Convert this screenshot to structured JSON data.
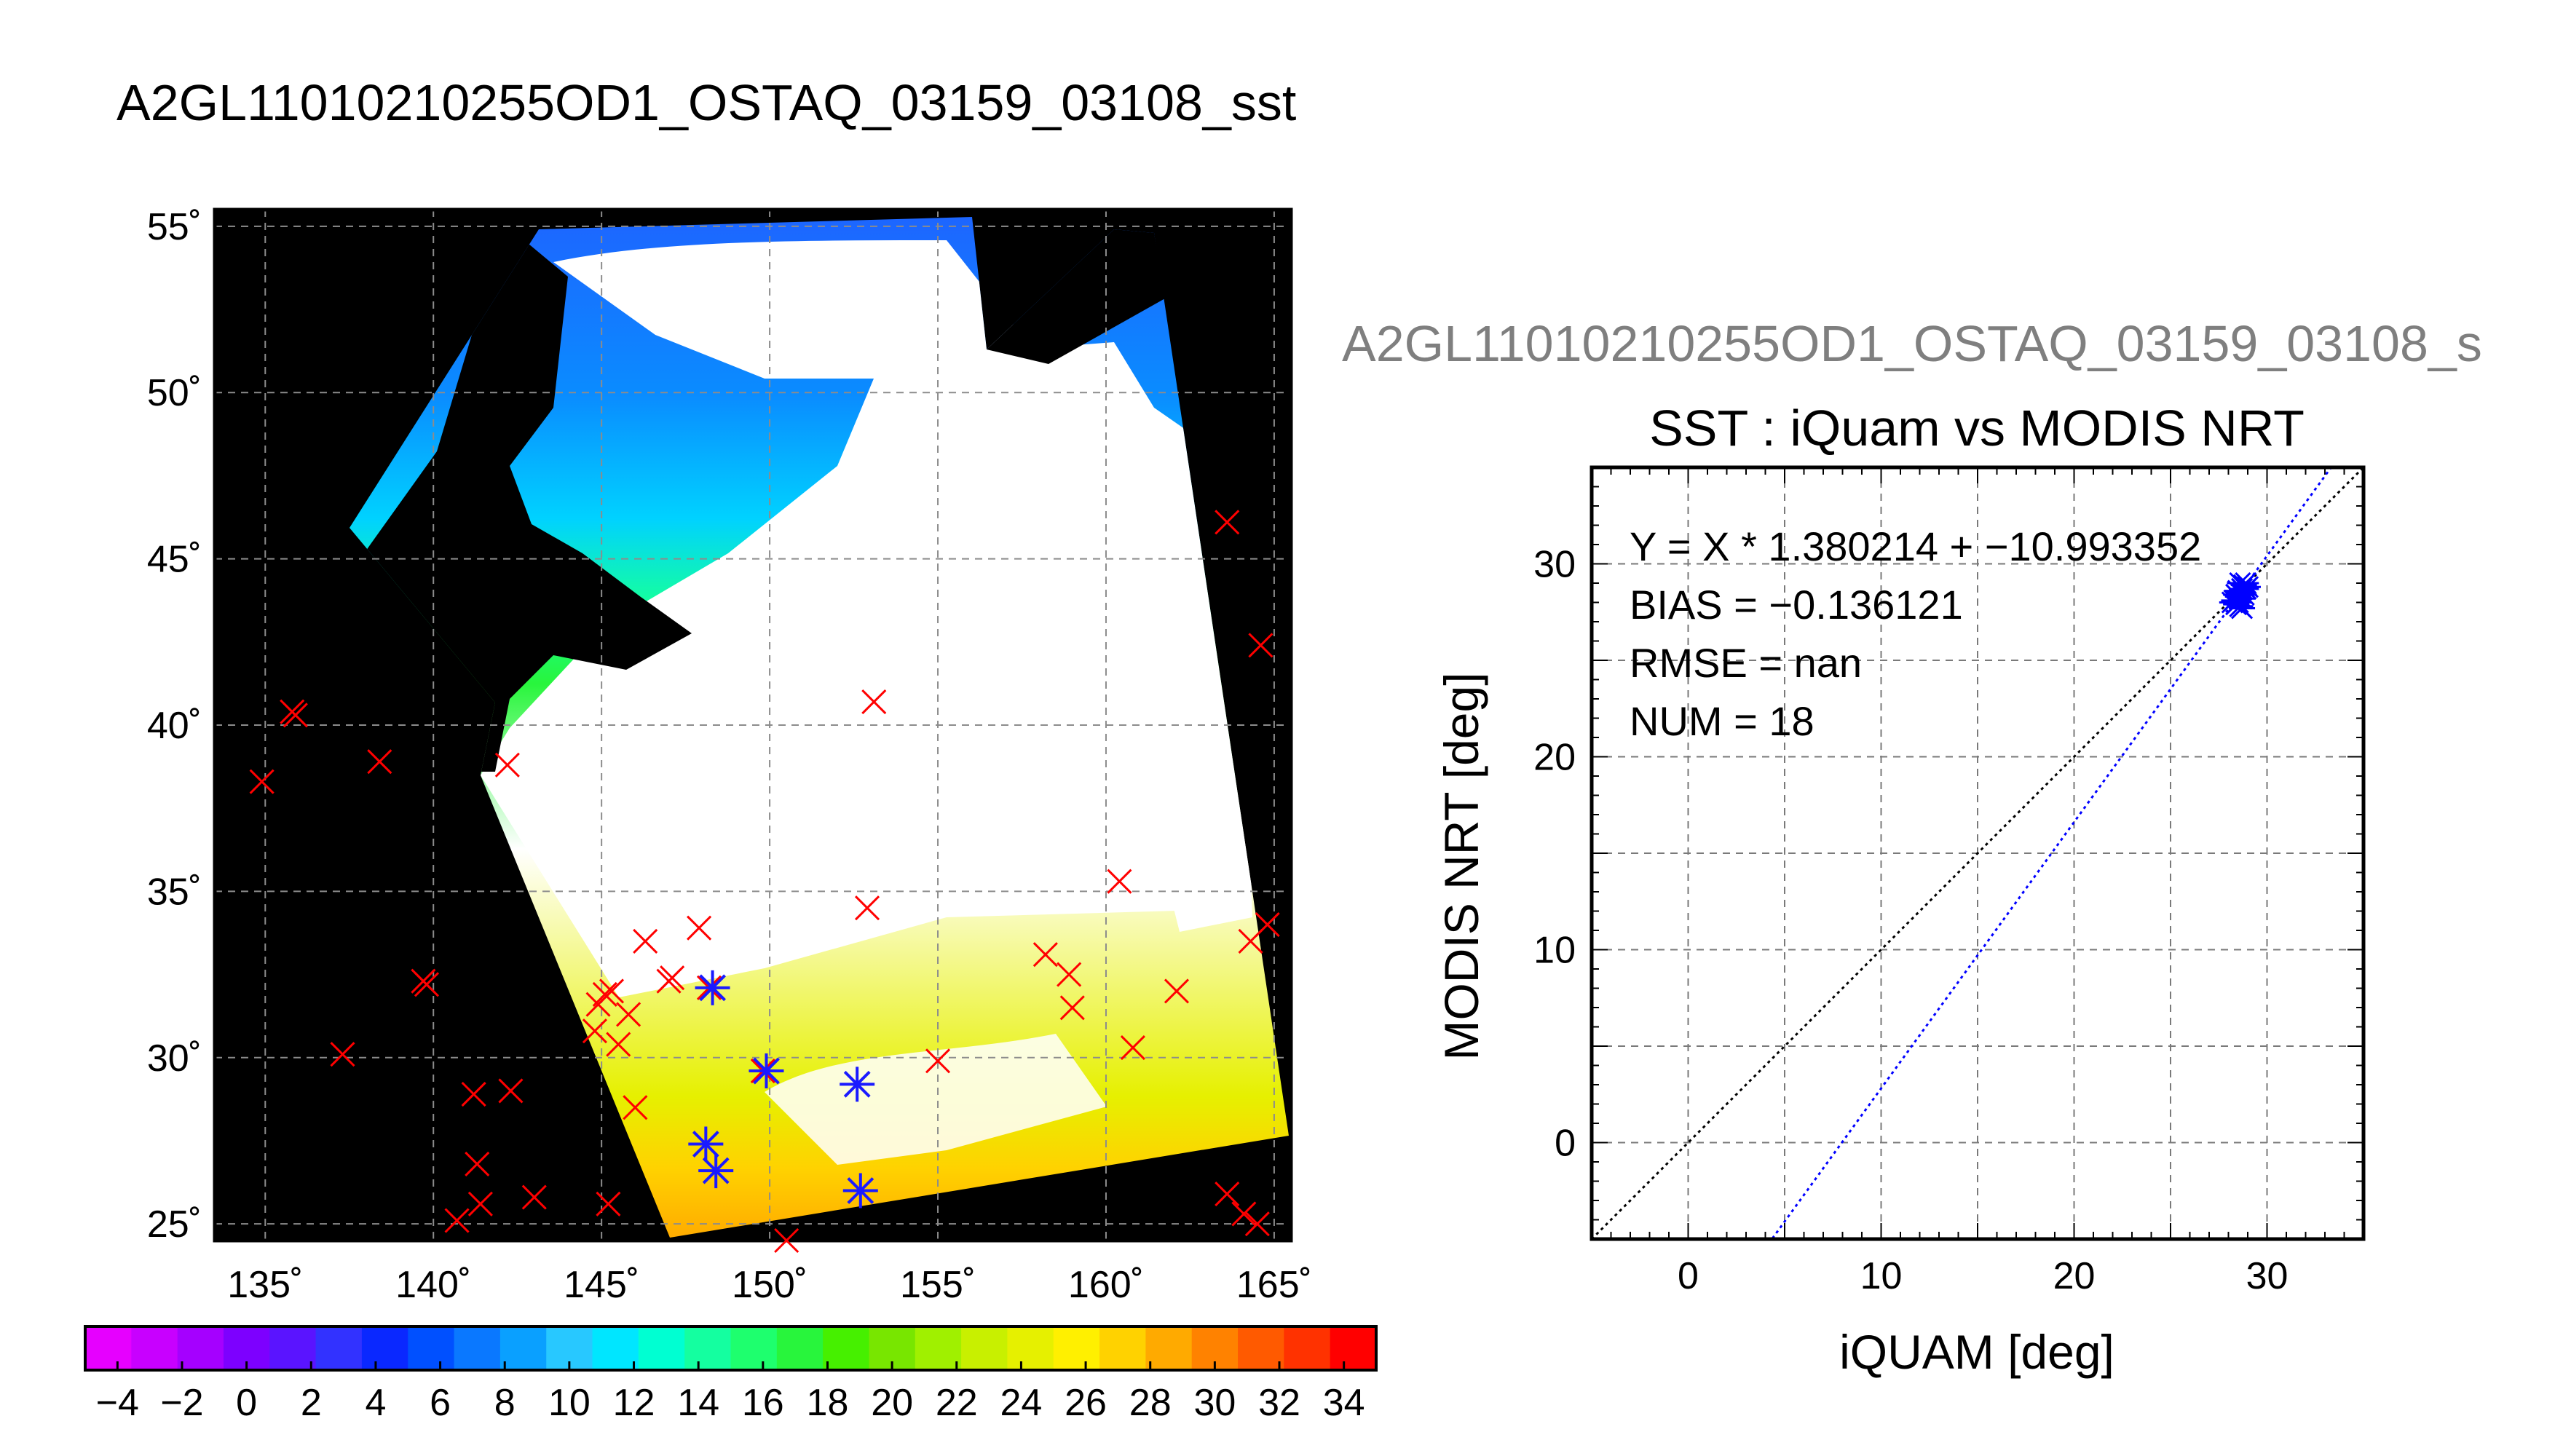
{
  "main_title": "A2GL11010210255OD1_OSTAQ_03159_03108_sst",
  "chart_data": [
    {
      "type": "map",
      "title": "A2GL11010210255OD1_OSTAQ_03159_03108_sst",
      "xlim": [
        133.5,
        165.5
      ],
      "ylim": [
        24.5,
        55.5
      ],
      "x_ticks": [
        135,
        140,
        145,
        150,
        155,
        160,
        165
      ],
      "y_ticks": [
        25,
        30,
        35,
        40,
        45,
        50,
        55
      ],
      "x_tick_labels": [
        "135˚",
        "140˚",
        "145˚",
        "150˚",
        "155˚",
        "160˚",
        "165˚"
      ],
      "y_tick_labels": [
        "25˚",
        "30˚",
        "35˚",
        "40˚",
        "45˚",
        "50˚",
        "55˚"
      ],
      "grid": true,
      "colorbar": {
        "min": -5,
        "max": 35,
        "tick_values": [
          -4,
          -2,
          0,
          2,
          4,
          6,
          8,
          10,
          12,
          14,
          16,
          18,
          20,
          22,
          24,
          26,
          28,
          30,
          32,
          34
        ],
        "tick_labels": [
          "−4",
          "−2",
          "0",
          "2",
          "4",
          "6",
          "8",
          "10",
          "12",
          "14",
          "16",
          "18",
          "20",
          "22",
          "24",
          "26",
          "28",
          "30",
          "32",
          "34"
        ],
        "colors": [
          "#e600ff",
          "#c800ff",
          "#a500ff",
          "#7d00ff",
          "#5a14ff",
          "#3232ff",
          "#0a28ff",
          "#0050ff",
          "#0a78ff",
          "#0aa0ff",
          "#28c8ff",
          "#00e6ff",
          "#00ffd2",
          "#14ffa0",
          "#1eff6e",
          "#28f53c",
          "#46f000",
          "#78e600",
          "#a0f000",
          "#c8f000",
          "#e6f000",
          "#fff000",
          "#ffd200",
          "#ffaa00",
          "#ff8200",
          "#ff5a00",
          "#ff3200",
          "#ff0000"
        ]
      },
      "in_situ_points": [
        [
          134.9,
          38.3
        ],
        [
          135.8,
          40.4
        ],
        [
          135.9,
          40.3
        ],
        [
          137.3,
          30.1
        ],
        [
          138.4,
          38.9
        ],
        [
          139.7,
          32.3
        ],
        [
          139.8,
          32.2
        ],
        [
          140.7,
          25.1
        ],
        [
          141.2,
          28.9
        ],
        [
          141.3,
          26.8
        ],
        [
          141.4,
          25.6
        ],
        [
          142.2,
          38.8
        ],
        [
          142.3,
          29.0
        ],
        [
          143.0,
          25.8
        ],
        [
          144.8,
          30.8
        ],
        [
          144.9,
          31.6
        ],
        [
          145.1,
          31.9
        ],
        [
          145.3,
          32.0
        ],
        [
          145.2,
          25.6
        ],
        [
          145.5,
          30.4
        ],
        [
          145.8,
          31.3
        ],
        [
          146.0,
          28.5
        ],
        [
          146.3,
          33.5
        ],
        [
          147.0,
          32.3
        ],
        [
          147.1,
          32.4
        ],
        [
          147.9,
          33.9
        ],
        [
          148.1,
          27.4
        ],
        [
          148.2,
          32.1
        ],
        [
          148.4,
          26.6
        ],
        [
          149.8,
          29.6
        ],
        [
          150.5,
          24.5
        ],
        [
          152.6,
          29.2
        ],
        [
          152.9,
          34.5
        ],
        [
          152.7,
          26.0
        ],
        [
          153.1,
          40.7
        ],
        [
          155.0,
          29.9
        ],
        [
          158.2,
          33.1
        ],
        [
          158.9,
          32.5
        ],
        [
          159.0,
          31.5
        ],
        [
          160.4,
          35.3
        ],
        [
          160.8,
          30.3
        ],
        [
          162.1,
          32.0
        ],
        [
          163.6,
          46.1
        ],
        [
          163.6,
          25.9
        ],
        [
          164.1,
          25.3
        ],
        [
          164.3,
          33.5
        ],
        [
          164.5,
          25.0
        ],
        [
          164.8,
          34.0
        ],
        [
          164.6,
          42.4
        ]
      ],
      "matchup_points": [
        [
          148.3,
          32.1
        ],
        [
          148.1,
          27.4
        ],
        [
          148.4,
          26.6
        ],
        [
          149.9,
          29.6
        ],
        [
          152.6,
          29.2
        ],
        [
          152.7,
          26.0
        ]
      ]
    },
    {
      "type": "scatter",
      "super_title": "A2GL11010210255OD1_OSTAQ_03159_03108_s",
      "title": "SST : iQuam vs MODIS NRT",
      "xlabel": "iQUAM [deg]",
      "ylabel": "MODIS NRT [deg]",
      "xlim": [
        -5,
        35
      ],
      "ylim": [
        -5,
        35
      ],
      "x_ticks": [
        0,
        10,
        20,
        30
      ],
      "y_ticks": [
        0,
        10,
        20,
        30
      ],
      "x_tick_labels": [
        "0",
        "10",
        "20",
        "30"
      ],
      "y_tick_labels": [
        "0",
        "10",
        "20",
        "30"
      ],
      "grid": true,
      "stats": {
        "line1": "Y = X * 1.380214 + −10.993352",
        "line2": "BIAS = −0.136121",
        "line3": "RMSE = nan",
        "line4": "NUM = 18"
      },
      "slope": 1.380214,
      "intercept": -10.993352,
      "points": [
        [
          28.3,
          28.1
        ],
        [
          28.5,
          28.3
        ],
        [
          28.6,
          28.5
        ],
        [
          28.4,
          27.9
        ],
        [
          28.7,
          28.7
        ],
        [
          28.8,
          28.9
        ],
        [
          28.9,
          29.0
        ],
        [
          28.5,
          28.6
        ],
        [
          28.6,
          27.8
        ],
        [
          28.7,
          28.2
        ],
        [
          28.8,
          28.4
        ],
        [
          28.4,
          28.4
        ],
        [
          28.9,
          28.7
        ],
        [
          28.2,
          28.0
        ],
        [
          28.6,
          29.0
        ],
        [
          28.7,
          27.7
        ],
        [
          29.0,
          28.8
        ],
        [
          28.5,
          28.0
        ]
      ],
      "point_color": "#0000ff",
      "fit_color": "#0000ff",
      "identity_color": "#000000"
    }
  ]
}
